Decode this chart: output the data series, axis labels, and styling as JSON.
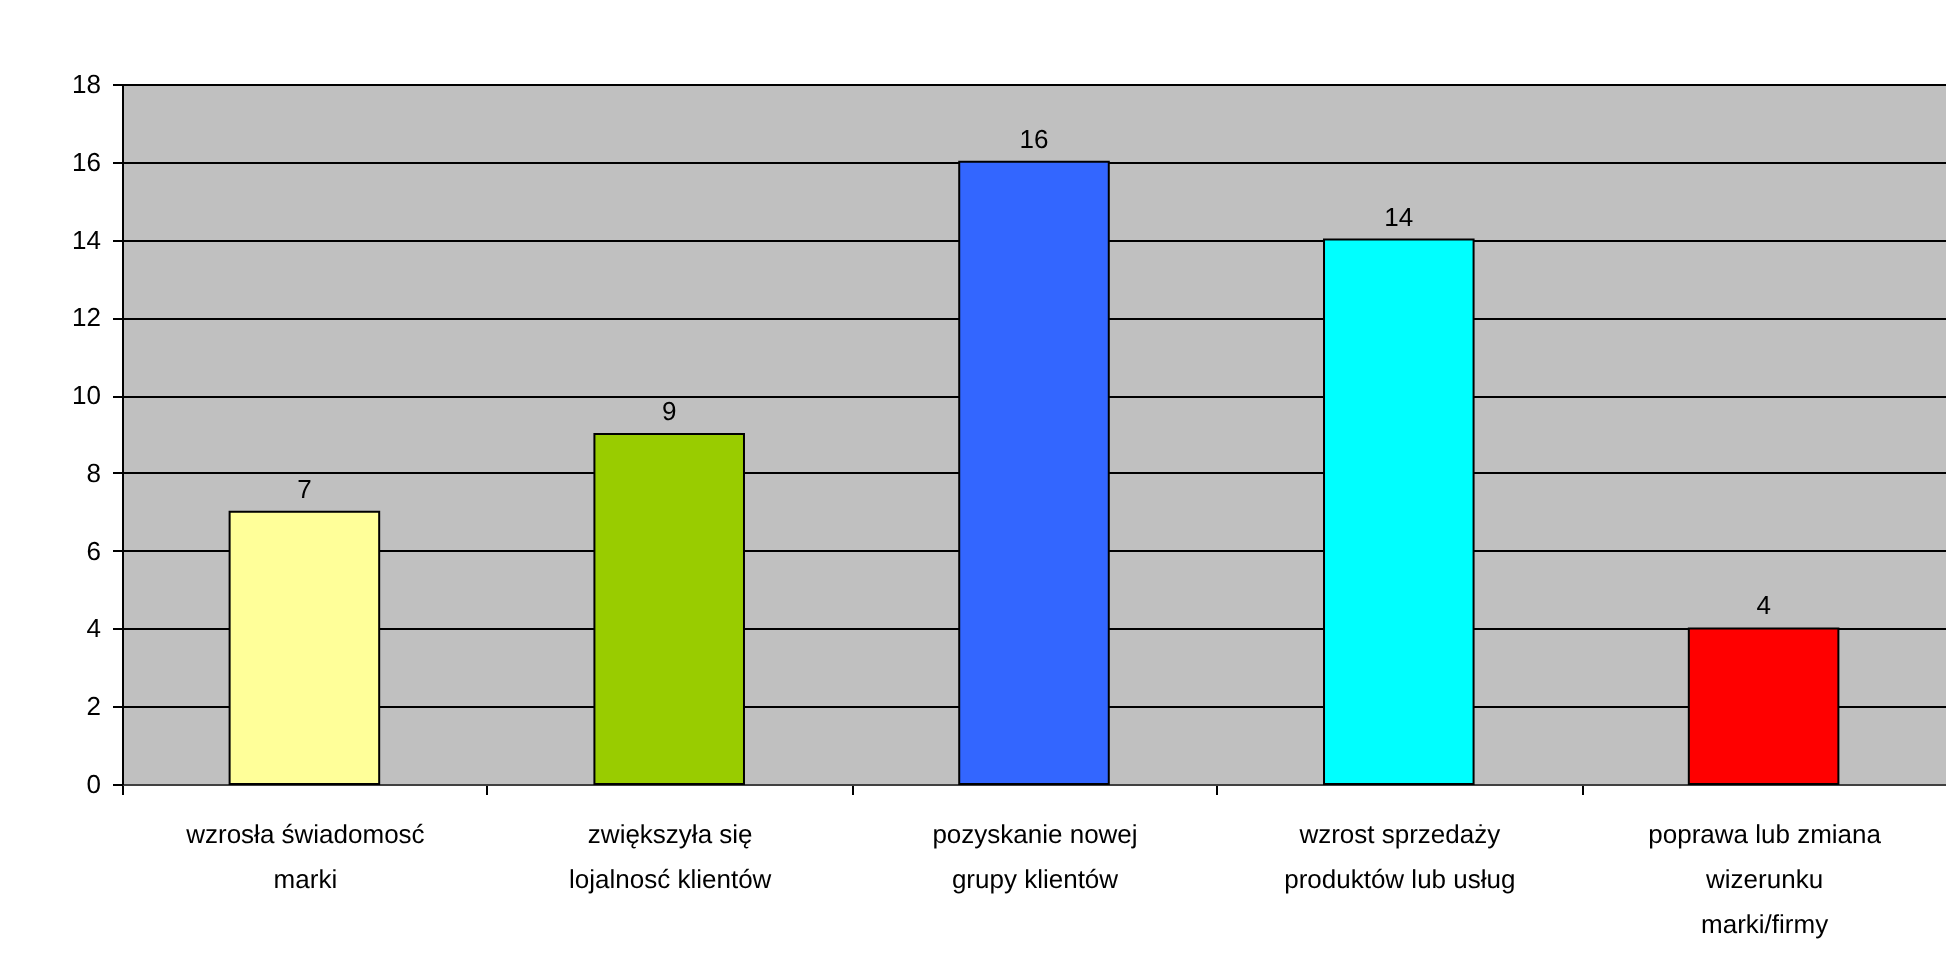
{
  "chart_data": {
    "type": "bar",
    "categories": [
      "wzrosła świadomosć marki",
      "zwiększyła się lojalnosć klientów",
      "pozyskanie nowej grupy klientów",
      "wzrost sprzedaży produktów lub usług",
      "poprawa lub zmiana wizerunku marki/firmy"
    ],
    "values": [
      7,
      9,
      16,
      14,
      4
    ],
    "colors": [
      "#ffff99",
      "#99cc00",
      "#3366ff",
      "#00ffff",
      "#ff0000"
    ],
    "ylim": [
      0,
      18
    ],
    "yticks": [
      0,
      2,
      4,
      6,
      8,
      10,
      12,
      14,
      16,
      18
    ],
    "grid": "y",
    "data_labels": true
  }
}
